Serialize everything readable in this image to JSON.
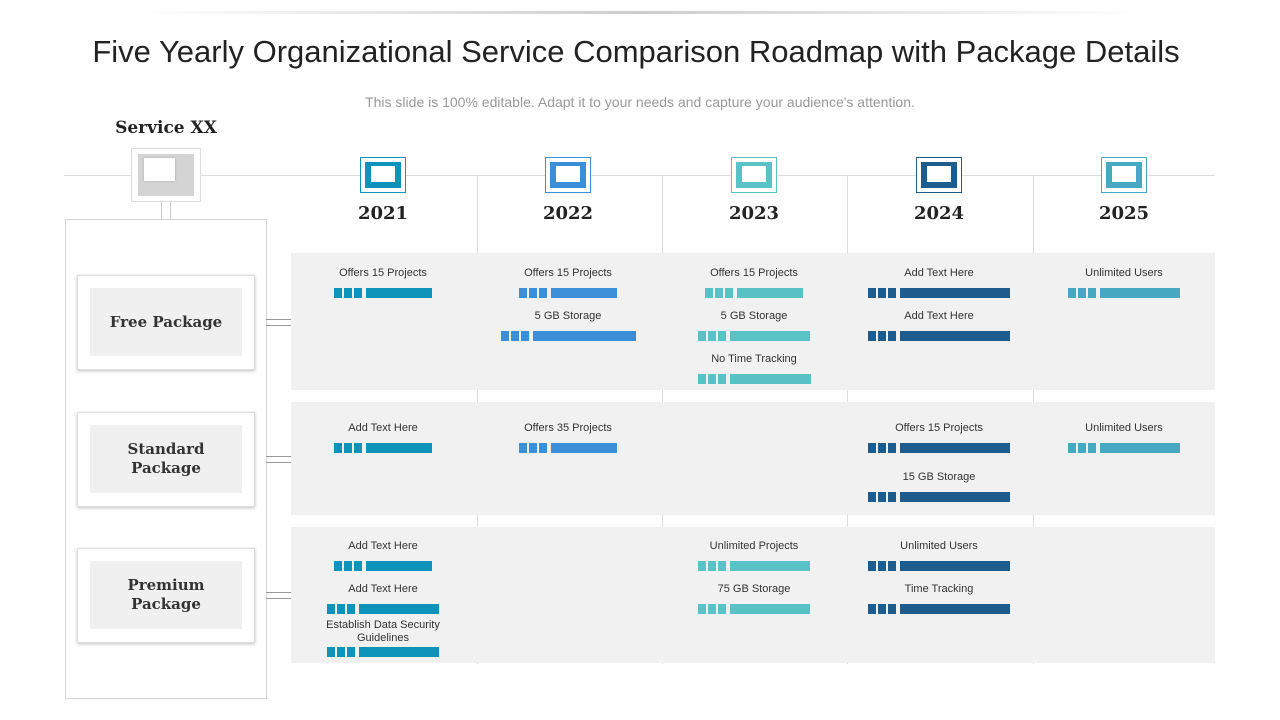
{
  "title": "Five Yearly Organizational Service Comparison Roadmap with Package Details",
  "subtitle": "This slide is 100% editable. Adapt it to your needs and capture your audience's attention.",
  "service": {
    "title": "Service XX",
    "icon": "window-icon"
  },
  "packages": [
    {
      "label": "Free Package"
    },
    {
      "label": "Standard Package"
    },
    {
      "label": "Premium Package"
    }
  ],
  "years": [
    {
      "label": "2021",
      "color": "#0e94ba"
    },
    {
      "label": "2022",
      "color": "#3a8fd8"
    },
    {
      "label": "2023",
      "color": "#58c2c6"
    },
    {
      "label": "2024",
      "color": "#1e5c8e"
    },
    {
      "label": "2025",
      "color": "#46a9c1"
    }
  ],
  "rows": [
    {
      "cells": [
        [
          "Offers 15 Projects"
        ],
        [
          "Offers 15 Projects",
          "5 GB Storage"
        ],
        [
          "Offers 15 Projects",
          "5 GB Storage",
          "No Time Tracking"
        ],
        [
          "Add Text Here",
          "Add Text Here"
        ],
        [
          "Unlimited Users"
        ]
      ]
    },
    {
      "cells": [
        [
          "Add Text Here"
        ],
        [
          "Offers 35 Projects"
        ],
        [],
        [
          "Offers 15 Projects",
          "15 GB Storage"
        ],
        [
          "Unlimited Users"
        ]
      ]
    },
    {
      "cells": [
        [
          "Add Text Here",
          "Add Text Here",
          "Establish Data Security Guidelines"
        ],
        [],
        [
          "Unlimited Projects",
          "75 GB Storage"
        ],
        [
          "Unlimited Users",
          "Time Tracking"
        ],
        []
      ]
    }
  ]
}
